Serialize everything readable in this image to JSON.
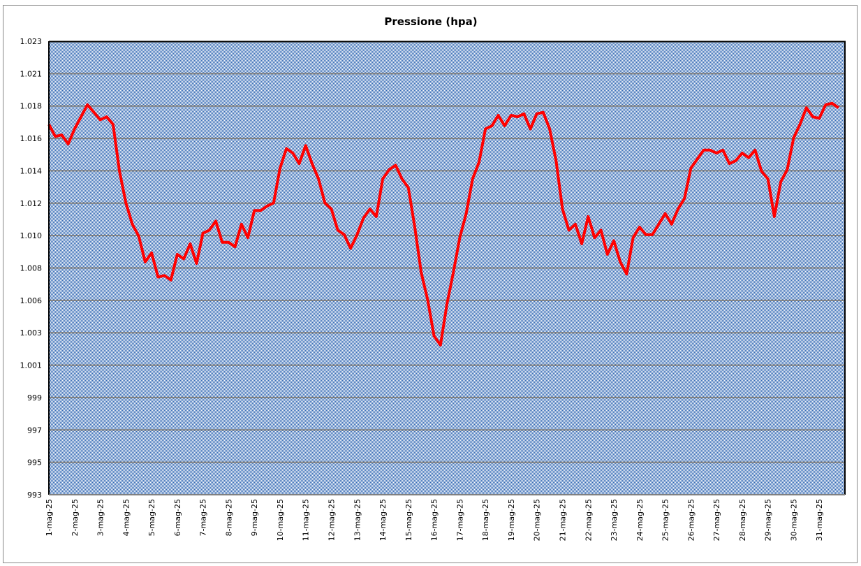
{
  "chart_data": {
    "type": "line",
    "title": "Pressione (hpa)",
    "xlabel": "",
    "ylabel": "",
    "ylim": [
      993,
      1023
    ],
    "y_tick_labels": [
      "993",
      "995",
      "997",
      "999",
      "1.001",
      "1.003",
      "1.006",
      "1.008",
      "1.010",
      "1.012",
      "1.014",
      "1.016",
      "1.018",
      "1.021",
      "1.023"
    ],
    "x_tick_labels": [
      "1-mag-25",
      "2-mag-25",
      "3-mag-25",
      "4-mag-25",
      "5-mag-25",
      "6-mag-25",
      "7-mag-25",
      "8-mag-25",
      "9-mag-25",
      "10-mag-25",
      "11-mag-25",
      "12-mag-25",
      "13-mag-25",
      "14-mag-25",
      "15-mag-25",
      "16-mag-25",
      "17-mag-25",
      "18-mag-25",
      "19-mag-25",
      "20-mag-25",
      "21-mag-25",
      "22-mag-25",
      "23-mag-25",
      "24-mag-25",
      "25-mag-25",
      "26-mag-25",
      "27-mag-25",
      "28-mag-25",
      "29-mag-25",
      "30-mag-25",
      "31-mag-25"
    ],
    "grid": true,
    "legend": "none",
    "colors": {
      "line": "#ff0000",
      "plot_pattern": "#2f66b3",
      "grid": "#808080"
    },
    "sample_hours": [
      "00:00",
      "06:00",
      "12:00",
      "18:00"
    ],
    "series": [
      {
        "values_by_day": [
          [
            1017.5,
            1016.7,
            1016.8,
            1016.2
          ],
          [
            1017.2,
            1018.0,
            1018.8,
            1018.3
          ],
          [
            1017.8,
            1018.0,
            1017.5,
            1014.4
          ],
          [
            1012.3,
            1010.9,
            1010.1,
            1008.4
          ],
          [
            1009.0,
            1007.4,
            1007.5,
            1007.2
          ],
          [
            1008.9,
            1008.6,
            1009.6,
            1008.3
          ],
          [
            1010.3,
            1010.5,
            1011.1,
            1009.7
          ],
          [
            1009.7,
            1009.4,
            1010.9,
            1010.0
          ],
          [
            1011.8,
            1011.8,
            1012.1,
            1012.3
          ],
          [
            1014.6,
            1015.9,
            1015.6,
            1014.9
          ],
          [
            1016.1,
            1014.9,
            1013.9,
            1012.3
          ],
          [
            1011.9,
            1010.5,
            1010.2,
            1009.3
          ],
          [
            1010.2,
            1011.3,
            1011.9,
            1011.4
          ],
          [
            1013.9,
            1014.5,
            1014.8,
            1013.9
          ],
          [
            1013.3,
            1010.7,
            1007.7,
            1005.9
          ],
          [
            1003.5,
            1002.9,
            1005.6,
            1007.7
          ],
          [
            1010.0,
            1011.6,
            1013.9,
            1015.0
          ],
          [
            1017.2,
            1017.4,
            1018.1,
            1017.4
          ],
          [
            1018.1,
            1018.0,
            1018.2,
            1017.2
          ],
          [
            1018.2,
            1018.3,
            1017.2,
            1015.1
          ],
          [
            1011.9,
            1010.5,
            1010.9,
            1009.6
          ],
          [
            1011.4,
            1010.0,
            1010.5,
            1008.9
          ],
          [
            1009.8,
            1008.4,
            1007.6,
            1010.0
          ],
          [
            1010.7,
            1010.2,
            1010.2,
            1010.9
          ],
          [
            1011.6,
            1010.9,
            1011.9,
            1012.6
          ],
          [
            1014.6,
            1015.2,
            1015.8,
            1015.8
          ],
          [
            1015.6,
            1015.8,
            1014.9,
            1015.1
          ],
          [
            1015.6,
            1015.3,
            1015.8,
            1014.4
          ],
          [
            1013.9,
            1011.4,
            1013.7,
            1014.5
          ],
          [
            1016.6,
            1017.5,
            1018.6,
            1018.0
          ],
          [
            1017.9,
            1018.8,
            1018.9,
            1018.6
          ]
        ]
      }
    ]
  }
}
